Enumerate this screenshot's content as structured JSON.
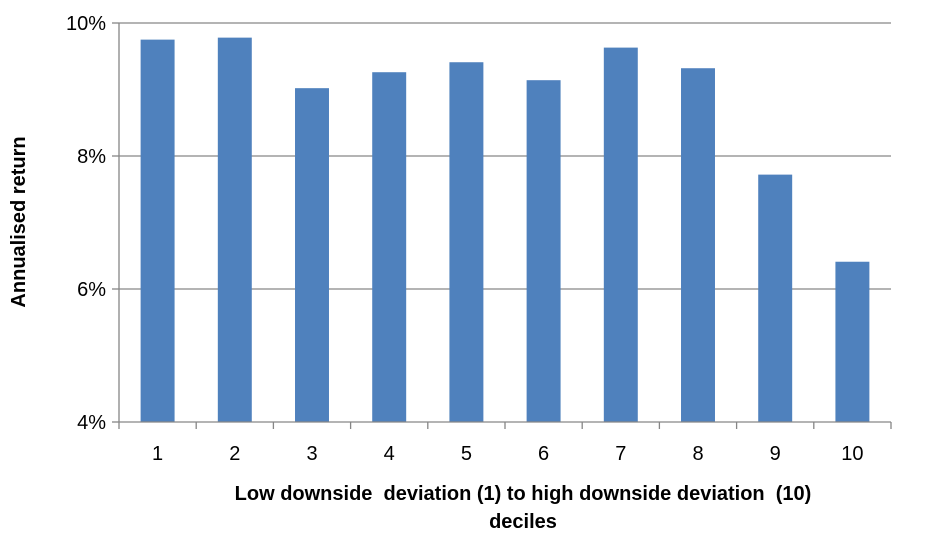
{
  "chart_data": {
    "type": "bar",
    "title": "",
    "xlabel_lines": [
      "Low downside  deviation (1) to high downside deviation  (10)",
      "deciles"
    ],
    "ylabel": "Annualised return",
    "categories": [
      "1",
      "2",
      "3",
      "4",
      "5",
      "6",
      "7",
      "8",
      "9",
      "10"
    ],
    "values": [
      9.75,
      9.78,
      9.02,
      9.26,
      9.41,
      9.14,
      9.63,
      9.32,
      7.72,
      6.41
    ],
    "y_unit": "%",
    "ylim": [
      4,
      10
    ],
    "yticks": [
      4,
      6,
      8,
      10
    ],
    "ytick_labels": [
      "4%",
      "6%",
      "8%",
      "10%"
    ],
    "grid": true,
    "legend": "none",
    "colors": {
      "bar": "#4F81BD",
      "grid": "#868686",
      "axis": "#868686"
    }
  }
}
